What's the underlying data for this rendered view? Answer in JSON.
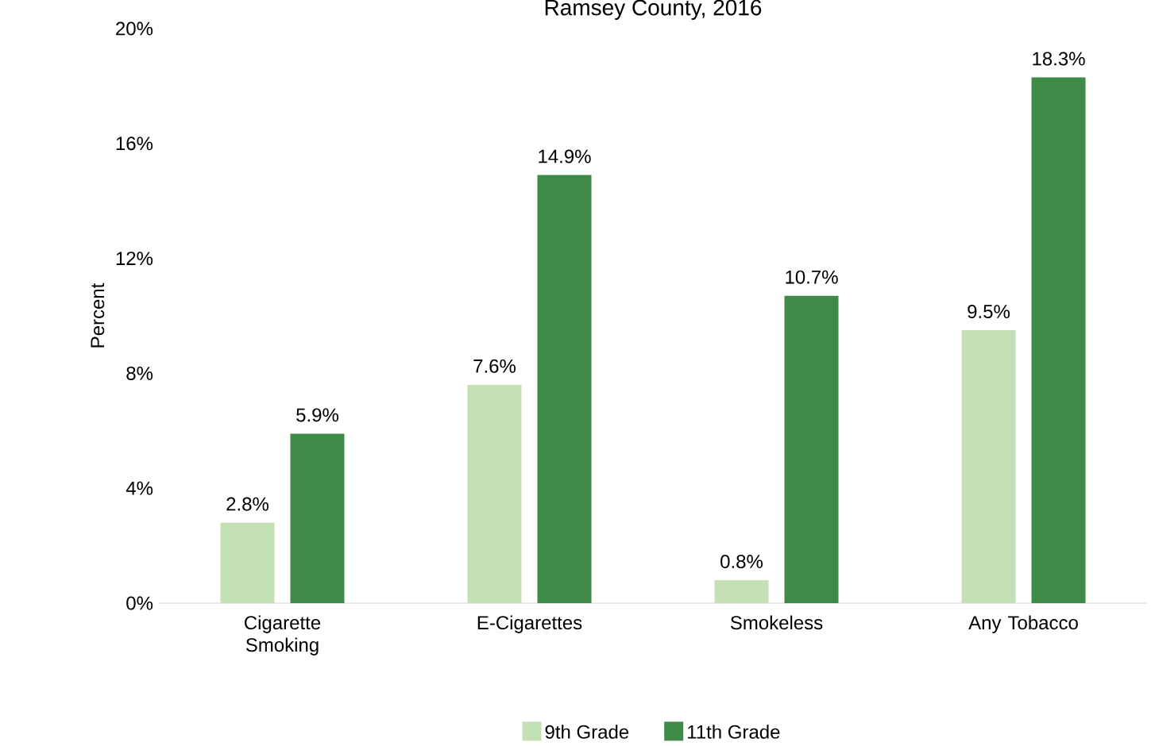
{
  "chart_data": {
    "type": "bar",
    "title": "Ramsey County, 2016",
    "ylabel": "Percent",
    "categories": [
      "Cigarette Smoking",
      "E-Cigarettes",
      "Smokeless",
      "Any Tobacco"
    ],
    "series": [
      {
        "name": "9th Grade",
        "color": "#c5e0b4",
        "values": [
          2.8,
          7.6,
          0.8,
          9.5
        ]
      },
      {
        "name": "11th Grade",
        "color": "#3d8b46",
        "values": [
          5.9,
          14.9,
          10.7,
          18.3
        ]
      }
    ],
    "ylim": [
      0,
      20
    ],
    "yticks": [
      {
        "value": 0,
        "label": "0%"
      },
      {
        "value": 4,
        "label": "4%"
      },
      {
        "value": 8,
        "label": "8%"
      },
      {
        "value": 12,
        "label": "12%"
      },
      {
        "value": 16,
        "label": "16%"
      },
      {
        "value": 20,
        "label": "20%"
      }
    ],
    "value_labels": [
      [
        "2.8%",
        "7.6%",
        "0.8%",
        "9.5%"
      ],
      [
        "5.9%",
        "14.9%",
        "10.7%",
        "18.3%"
      ]
    ],
    "grid": false,
    "legend": "bottom"
  }
}
